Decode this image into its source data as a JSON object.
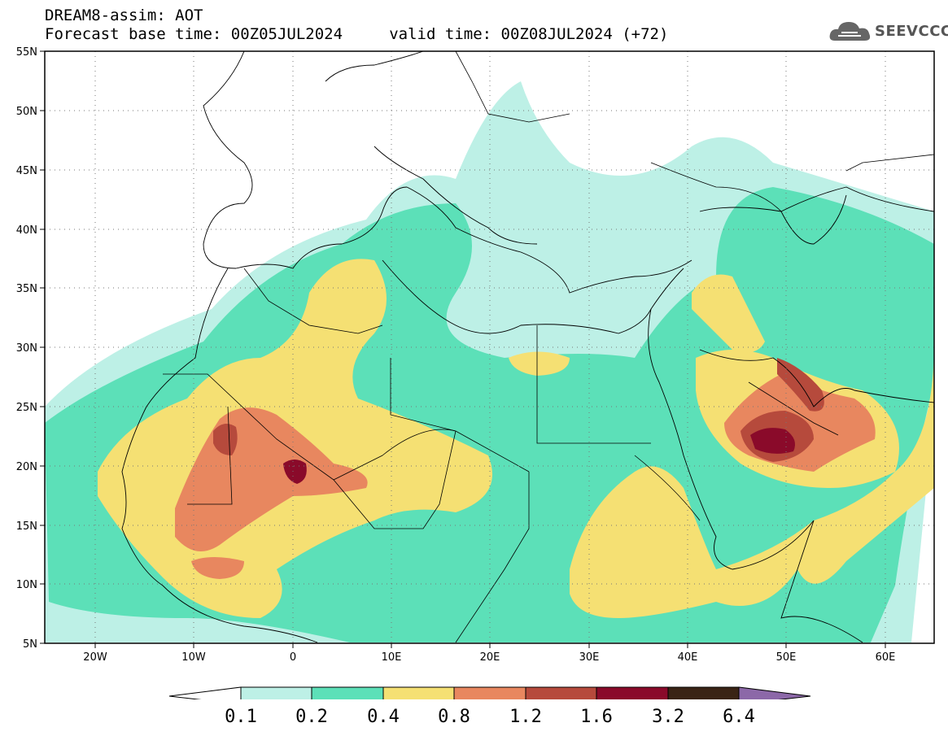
{
  "title": {
    "line1": "DREAM8-assim: AOT",
    "line2": "Forecast base time: 00Z05JUL2024     valid time: 00Z08JUL2024 (+72)"
  },
  "logo": {
    "text": "SEEVCCC",
    "icon": "cloud-icon"
  },
  "map": {
    "extent": {
      "lon": [
        -25,
        65
      ],
      "lat": [
        5,
        55
      ]
    },
    "lat_ticks": [
      "55N",
      "50N",
      "45N",
      "40N",
      "35N",
      "30N",
      "25N",
      "20N",
      "15N",
      "10N",
      "5N"
    ],
    "lon_ticks": [
      "20W",
      "10W",
      "0",
      "10E",
      "20E",
      "30E",
      "40E",
      "50E",
      "60E"
    ],
    "grid": "dotted"
  },
  "colorbar": {
    "colors": [
      "#ffffff",
      "#bdf0e6",
      "#5ce0b8",
      "#f5e073",
      "#e8875f",
      "#b64a3c",
      "#8a0a2a",
      "#3a2415",
      "#8c68a8"
    ],
    "labels": [
      "0.1",
      "0.2",
      "0.4",
      "0.8",
      "1.2",
      "1.6",
      "3.2",
      "6.4"
    ]
  }
}
